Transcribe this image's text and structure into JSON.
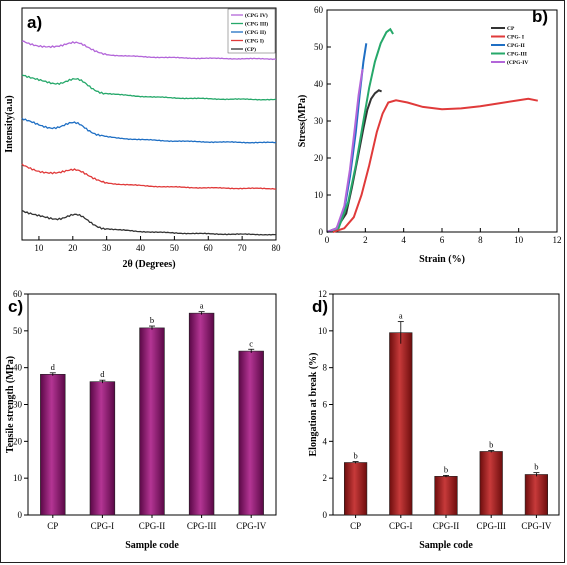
{
  "chart_data": [
    {
      "panel_label": "a)",
      "type": "line",
      "xlabel": "2θ (Degrees)",
      "ylabel": "Intensity(a.u)",
      "xlim": [
        5,
        80
      ],
      "x_ticks": [
        10,
        20,
        30,
        40,
        50,
        60,
        70,
        80
      ],
      "y_ticks": [],
      "legend_position": "top-right",
      "series": [
        {
          "name": "(CPG IV)",
          "color": "#b366d9"
        },
        {
          "name": "(CPG III)",
          "color": "#26a86a"
        },
        {
          "name": "(CPG II)",
          "color": "#1f6fc4"
        },
        {
          "name": "(CPG I)",
          "color": "#e03a3a"
        },
        {
          "name": "(CP)",
          "color": "#333333"
        }
      ]
    },
    {
      "panel_label": "b)",
      "type": "line",
      "xlabel": "Strain (%)",
      "ylabel": "Stress(MPa)",
      "xlim": [
        0,
        12
      ],
      "ylim": [
        0,
        60
      ],
      "x_ticks": [
        0,
        2,
        4,
        6,
        8,
        10,
        12
      ],
      "y_ticks": [
        0,
        10,
        20,
        30,
        40,
        50,
        60
      ],
      "legend_position": "top-right",
      "series": [
        {
          "name": "CP",
          "color": "#333333",
          "x": [
            0.0,
            0.5,
            1.0,
            1.3,
            1.6,
            1.9,
            2.1,
            2.3,
            2.5,
            2.7,
            2.85
          ],
          "y": [
            0,
            1,
            5,
            12,
            20,
            28,
            33,
            36,
            37.5,
            38.3,
            38.0
          ]
        },
        {
          "name": "CPG- I",
          "color": "#e03a3a",
          "x": [
            0.3,
            0.9,
            1.4,
            1.8,
            2.2,
            2.6,
            2.9,
            3.2,
            3.6,
            4.2,
            5.0,
            6.0,
            7.0,
            8.0,
            9.0,
            10.0,
            10.5,
            11.0
          ],
          "y": [
            0,
            1,
            4,
            10,
            18,
            27,
            32,
            35,
            35.6,
            35.0,
            33.8,
            33.2,
            33.4,
            34.0,
            34.8,
            35.6,
            36.0,
            35.5
          ]
        },
        {
          "name": "CPG-II",
          "color": "#1f6fc4",
          "x": [
            0.0,
            0.5,
            0.9,
            1.2,
            1.5,
            1.7,
            1.9,
            2.05
          ],
          "y": [
            0,
            1,
            6,
            15,
            27,
            37,
            46,
            51
          ]
        },
        {
          "name": "CPG-III",
          "color": "#26a86a",
          "x": [
            0.0,
            0.6,
            1.1,
            1.5,
            1.9,
            2.2,
            2.5,
            2.8,
            3.1,
            3.3,
            3.45
          ],
          "y": [
            0,
            1,
            8,
            18,
            30,
            39,
            46,
            51,
            54,
            54.8,
            53.5
          ]
        },
        {
          "name": "(CPG-IV",
          "color": "#b366d9",
          "x": [
            0.0,
            0.5,
            0.9,
            1.2,
            1.45,
            1.65,
            1.85
          ],
          "y": [
            0,
            1,
            7,
            17,
            28,
            37,
            44
          ]
        }
      ]
    },
    {
      "panel_label": "c)",
      "type": "bar",
      "xlabel": "Sample code",
      "ylabel": "Tensile strength (MPa)",
      "ylim": [
        0,
        60
      ],
      "y_ticks": [
        0,
        10,
        20,
        30,
        40,
        50,
        60
      ],
      "categories": [
        "CP",
        "CPG-I",
        "CPG-II",
        "CPG-III",
        "CPG-IV"
      ],
      "values": [
        38.2,
        36.2,
        50.8,
        54.8,
        44.5
      ],
      "errors": [
        0.4,
        0.4,
        0.5,
        0.4,
        0.5
      ],
      "significance": [
        "d",
        "d",
        "b",
        "a",
        "c"
      ],
      "bar_color": "#7a0f5e"
    },
    {
      "panel_label": "d)",
      "type": "bar",
      "xlabel": "Sample code",
      "ylabel": "Elongation at break (%)",
      "ylim": [
        0,
        12
      ],
      "y_ticks": [
        0,
        2,
        4,
        6,
        8,
        10,
        12
      ],
      "categories": [
        "CP",
        "CPG-I",
        "CPG-II",
        "CPG-III",
        "CPG-IV"
      ],
      "values": [
        2.85,
        9.9,
        2.1,
        3.45,
        2.2
      ],
      "errors": [
        0.05,
        0.6,
        0.05,
        0.05,
        0.1
      ],
      "significance": [
        "b",
        "a",
        "b",
        "b",
        "b"
      ],
      "bar_color": "#8b1212"
    }
  ]
}
